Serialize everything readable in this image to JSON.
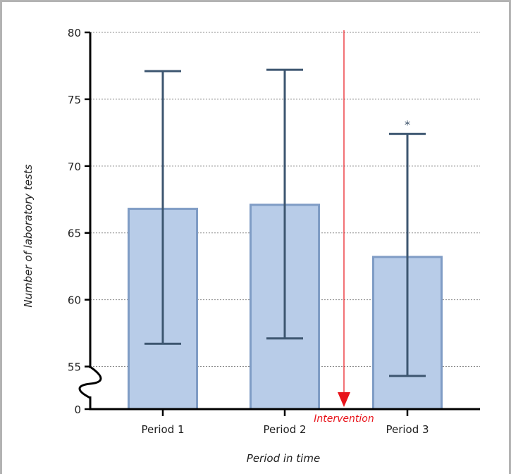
{
  "chart_data": {
    "type": "bar",
    "categories": [
      "Period 1",
      "Period 2",
      "Period 3"
    ],
    "values": [
      66.8,
      67.1,
      63.2
    ],
    "error_lower": [
      56.7,
      57.1,
      54.3
    ],
    "error_upper": [
      77.1,
      77.2,
      72.4
    ],
    "significance": [
      "",
      "",
      "*"
    ],
    "xlabel": "Period in time",
    "ylabel": "Number of laboratory tests",
    "y_ticks": [
      0,
      55,
      60,
      65,
      70,
      75,
      80
    ],
    "y_axis_break": {
      "from": 0,
      "to": 52.5
    },
    "ylim": [
      0,
      80
    ],
    "grid": "horizontal dashed",
    "annotation": {
      "text": "Intervention",
      "position": "between Period 2 and Period 3",
      "color": "#e8141b"
    },
    "colors": {
      "bar_fill": "#b8cce8",
      "bar_edge": "#7f9cc5",
      "error": "#3d5670",
      "axis": "#000000",
      "grid": "#8c8c8c"
    }
  }
}
